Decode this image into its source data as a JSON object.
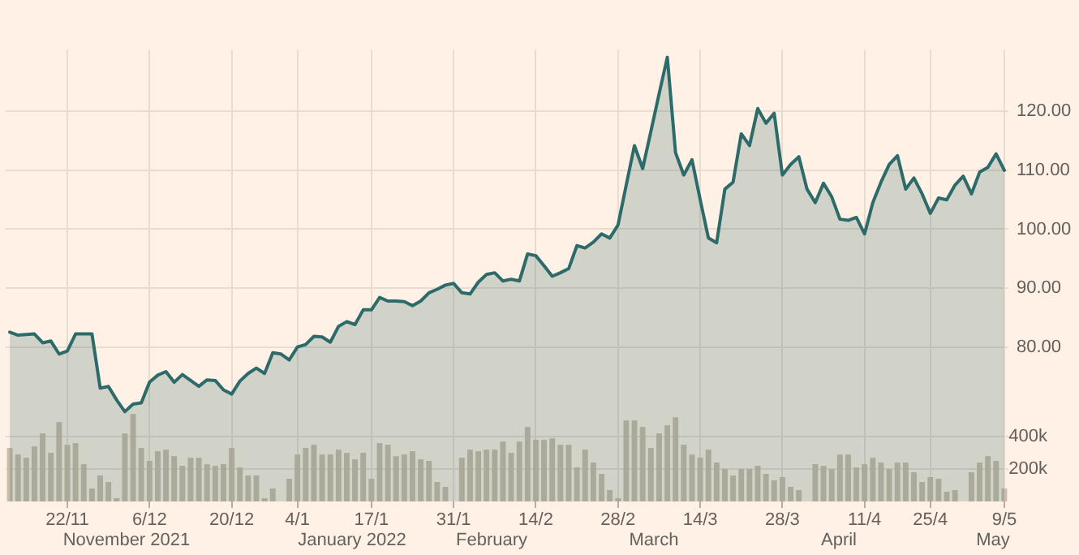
{
  "chart_data": {
    "type": "area",
    "categories": [
      null,
      null,
      null,
      null,
      null,
      null,
      null,
      "22/11",
      null,
      null,
      null,
      null,
      null,
      null,
      null,
      null,
      null,
      "6/12",
      null,
      null,
      null,
      null,
      null,
      null,
      null,
      null,
      null,
      "20/12",
      null,
      null,
      null,
      null,
      null,
      null,
      null,
      "4/1",
      null,
      null,
      null,
      null,
      null,
      null,
      null,
      null,
      "17/1",
      null,
      null,
      null,
      null,
      null,
      null,
      null,
      null,
      null,
      "31/1",
      null,
      null,
      null,
      null,
      null,
      null,
      null,
      null,
      null,
      "14/2",
      null,
      null,
      null,
      null,
      null,
      null,
      null,
      null,
      null,
      "28/2",
      null,
      null,
      null,
      null,
      null,
      null,
      null,
      null,
      null,
      "14/3",
      null,
      null,
      null,
      null,
      null,
      null,
      null,
      null,
      null,
      "28/3",
      null,
      null,
      null,
      null,
      null,
      null,
      null,
      null,
      null,
      "11/4",
      null,
      null,
      null,
      null,
      null,
      null,
      null,
      "25/4",
      null,
      null,
      null,
      null,
      null,
      null,
      null,
      null,
      "9/5"
    ],
    "series": [
      {
        "color": "#2d6b6b",
        "values": [
          82.5,
          82,
          82.1,
          82.2,
          80.7,
          81,
          78.8,
          79.3,
          82.2,
          82.2,
          82.2,
          73,
          73.3,
          71,
          69,
          70.3,
          70.5,
          74,
          75.2,
          75.8,
          74,
          75.3,
          74.3,
          73.3,
          74.4,
          74.3,
          72.7,
          72,
          74.2,
          75.5,
          76.4,
          75.5,
          79,
          78.8,
          77.8,
          80,
          80.4,
          81.8,
          81.7,
          80.8,
          83.5,
          84.3,
          83.8,
          86.3,
          86.3,
          88.4,
          87.8,
          87.8,
          87.7,
          87,
          87.8,
          89.2,
          89.8,
          90.5,
          90.8,
          89.2,
          89,
          91,
          92.3,
          92.6,
          91.2,
          91.5,
          91.2,
          95.8,
          95.5,
          93.8,
          92,
          92.6,
          93.3,
          97.2,
          96.8,
          97.8,
          99.2,
          98.5,
          100.7,
          107.5,
          114.2,
          110.3,
          116.6,
          123,
          129.2,
          113,
          109.2,
          111.8,
          105,
          98.5,
          97.7,
          106.8,
          108,
          116.2,
          114.2,
          120.5,
          118,
          119.7,
          109.2,
          111,
          112.3,
          106.8,
          104.5,
          107.8,
          105.5,
          101.7,
          101.5,
          102,
          99.2,
          104.5,
          108,
          111,
          112.5,
          106.8,
          108.7,
          106,
          102.7,
          105.3,
          105,
          107.5,
          109,
          106,
          109.7,
          110.5,
          112.8,
          110
        ]
      },
      {
        "type": "bar",
        "axis": "y2",
        "color": "#cdbba8",
        "values": [
          330000,
          290000,
          270000,
          340000,
          420000,
          300000,
          490000,
          350000,
          360000,
          230000,
          80000,
          160000,
          120000,
          20000,
          420000,
          540000,
          330000,
          250000,
          310000,
          320000,
          280000,
          220000,
          270000,
          270000,
          230000,
          220000,
          230000,
          330000,
          210000,
          160000,
          160000,
          20000,
          80000,
          null,
          140000,
          290000,
          330000,
          350000,
          290000,
          290000,
          320000,
          300000,
          260000,
          300000,
          140000,
          360000,
          350000,
          280000,
          290000,
          310000,
          260000,
          250000,
          120000,
          90000,
          null,
          270000,
          320000,
          310000,
          320000,
          320000,
          370000,
          300000,
          370000,
          460000,
          380000,
          380000,
          390000,
          350000,
          350000,
          210000,
          320000,
          240000,
          170000,
          70000,
          20000,
          500000,
          500000,
          460000,
          330000,
          420000,
          470000,
          520000,
          350000,
          290000,
          270000,
          320000,
          240000,
          200000,
          160000,
          200000,
          200000,
          220000,
          170000,
          130000,
          150000,
          90000,
          70000,
          null,
          230000,
          220000,
          200000,
          290000,
          290000,
          210000,
          230000,
          270000,
          240000,
          200000,
          240000,
          240000,
          180000,
          120000,
          150000,
          140000,
          60000,
          70000,
          null,
          180000,
          240000,
          280000,
          250000,
          80000
        ]
      }
    ],
    "ylim": [
      53.75,
      130.5
    ],
    "yticks": [
      {
        "value": 80,
        "label": "80.00"
      },
      {
        "value": 90,
        "label": "90.00"
      },
      {
        "value": 100,
        "label": "100.00"
      },
      {
        "value": 110,
        "label": "110.00"
      },
      {
        "value": 120,
        "label": "120.00"
      }
    ],
    "y2lim": [
      0,
      2790000
    ],
    "y2ticks": [
      {
        "value": 200000,
        "label": "200k"
      },
      {
        "value": 400000,
        "label": "400k"
      }
    ],
    "annotations": [
      "November 2021",
      "January 2022",
      "February",
      "March",
      "April",
      "May"
    ],
    "grid": true,
    "legend": false,
    "marker": "none",
    "line_style": "solid"
  }
}
